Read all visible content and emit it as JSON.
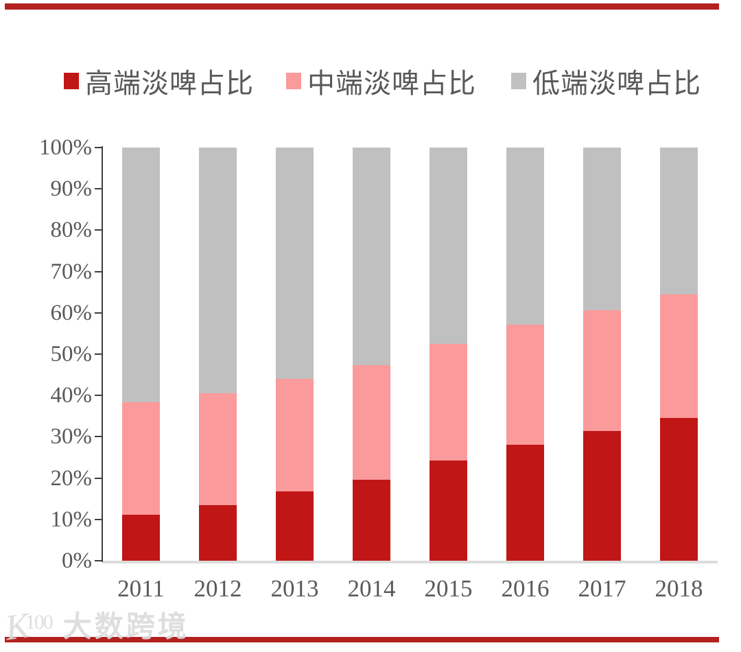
{
  "decor": {
    "top_rule_color": "#b32020",
    "bottom_rule_color": "#b32020"
  },
  "legend": {
    "items": [
      {
        "label": "高端淡啤占比",
        "color": "#c11616"
      },
      {
        "label": "中端淡啤占比",
        "color": "#fb9a9a"
      },
      {
        "label": "低端淡啤占比",
        "color": "#c0c0c0"
      }
    ]
  },
  "chart_data": {
    "type": "bar",
    "stacked": true,
    "percent_stacked": true,
    "title": "",
    "xlabel": "",
    "ylabel": "",
    "ylim": [
      0,
      100
    ],
    "grid": false,
    "legend_position": "top",
    "categories": [
      "2011",
      "2012",
      "2013",
      "2014",
      "2015",
      "2016",
      "2017",
      "2018"
    ],
    "y_ticks": [
      "100%",
      "90%",
      "80%",
      "70%",
      "60%",
      "50%",
      "40%",
      "30%",
      "20%",
      "10%",
      "0%"
    ],
    "series": [
      {
        "name": "高端淡啤占比",
        "color": "#c11616",
        "values": [
          11.2,
          13.5,
          16.7,
          19.6,
          24.3,
          28.1,
          31.4,
          34.6
        ]
      },
      {
        "name": "中端淡啤占比",
        "color": "#fb9a9a",
        "values": [
          27.1,
          27.1,
          27.4,
          27.8,
          28.2,
          29.1,
          29.3,
          29.8
        ]
      },
      {
        "name": "低端淡啤占比",
        "color": "#c0c0c0",
        "values": [
          61.7,
          59.4,
          55.9,
          52.6,
          47.5,
          42.8,
          39.3,
          35.6
        ]
      }
    ]
  },
  "watermark": {
    "logo": "100",
    "text": "大数跨境"
  }
}
